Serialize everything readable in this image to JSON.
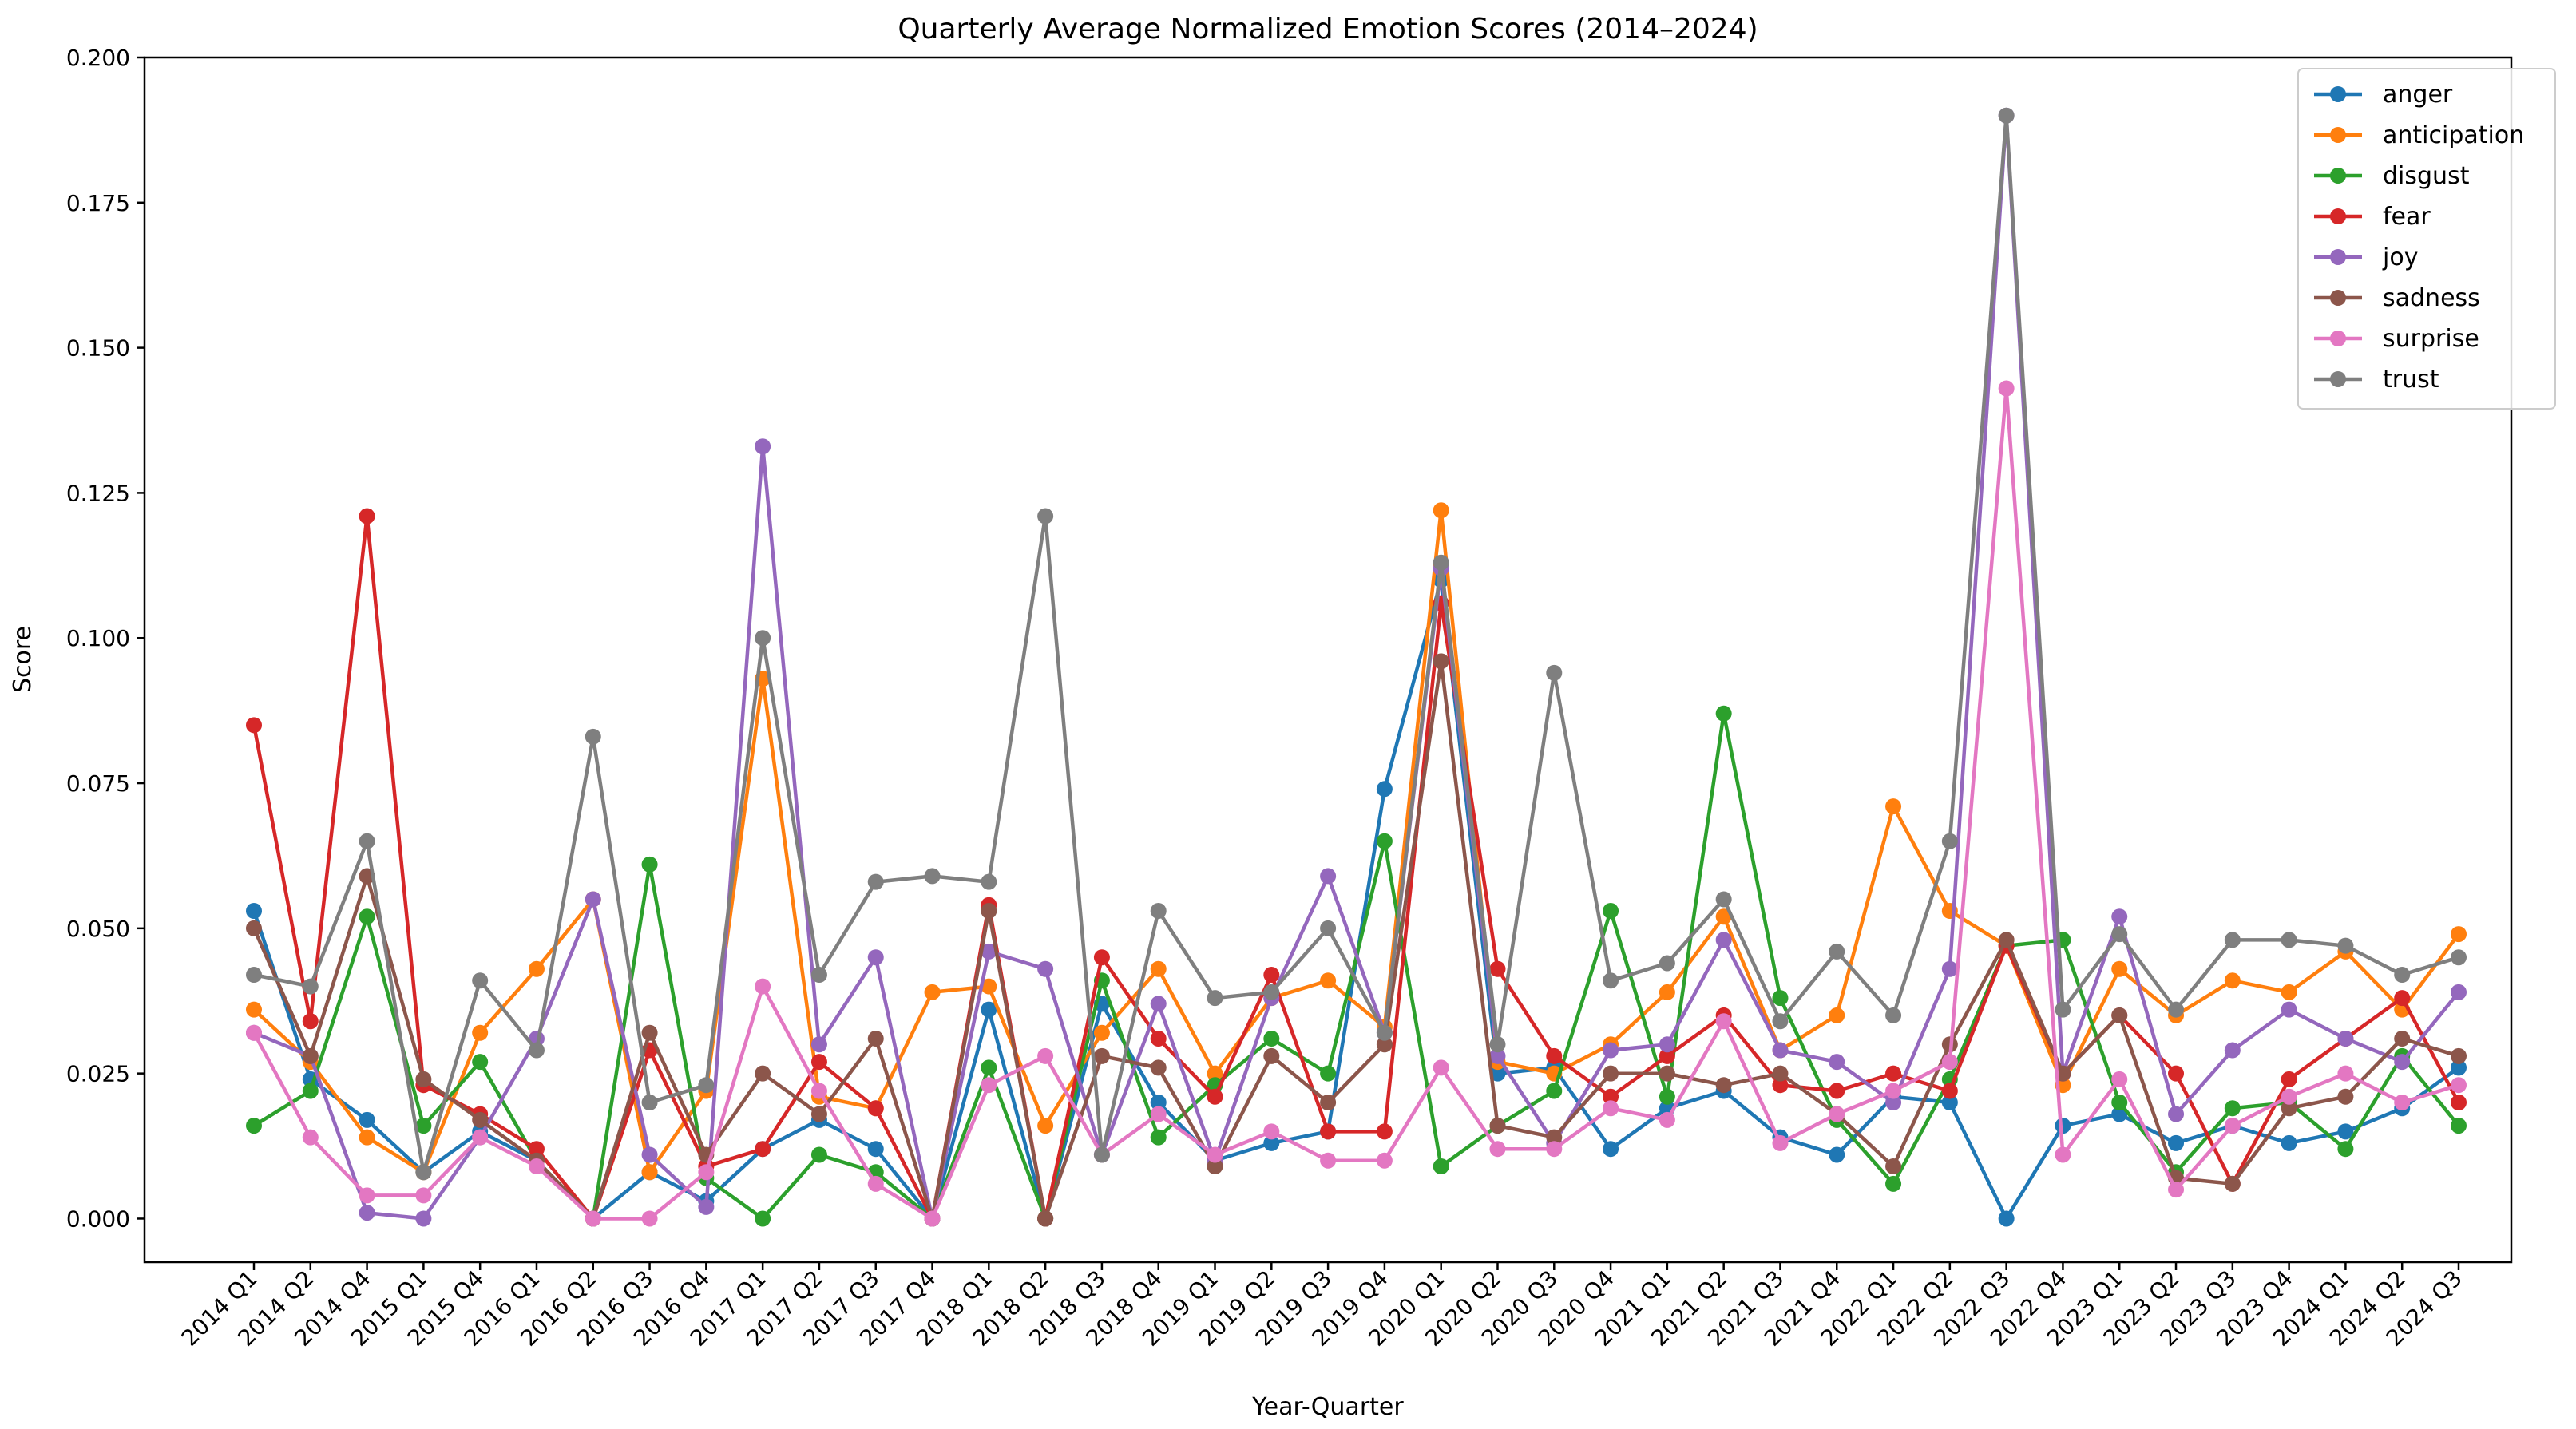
{
  "chart_data": {
    "type": "line",
    "title": "Quarterly Average Normalized Emotion Scores (2014–2024)",
    "xlabel": "Year-Quarter",
    "ylabel": "Score",
    "ylim": [
      -0.0075,
      0.2
    ],
    "yticks": [
      "0.000",
      "0.025",
      "0.050",
      "0.075",
      "0.100",
      "0.125",
      "0.150",
      "0.175",
      "0.200"
    ],
    "legend_position": "top-right",
    "grid": false,
    "categories": [
      "2014 Q1",
      "2014 Q2",
      "2014 Q4",
      "2015 Q1",
      "2015 Q4",
      "2016 Q1",
      "2016 Q2",
      "2016 Q3",
      "2016 Q4",
      "2017 Q1",
      "2017 Q2",
      "2017 Q3",
      "2017 Q4",
      "2018 Q1",
      "2018 Q2",
      "2018 Q3",
      "2018 Q4",
      "2019 Q1",
      "2019 Q2",
      "2019 Q3",
      "2019 Q4",
      "2020 Q1",
      "2020 Q2",
      "2020 Q3",
      "2020 Q4",
      "2021 Q1",
      "2021 Q2",
      "2021 Q3",
      "2021 Q4",
      "2022 Q1",
      "2022 Q2",
      "2022 Q3",
      "2022 Q4",
      "2023 Q1",
      "2023 Q2",
      "2023 Q3",
      "2023 Q4",
      "2024 Q1",
      "2024 Q2",
      "2024 Q3"
    ],
    "series": [
      {
        "name": "anger",
        "color": "#1f77b4",
        "values": [
          0.053,
          0.024,
          0.017,
          0.008,
          0.015,
          0.01,
          0.0,
          0.008,
          0.003,
          0.012,
          0.017,
          0.012,
          0.0,
          0.036,
          0.0,
          0.037,
          0.02,
          0.01,
          0.013,
          0.015,
          0.074,
          0.11,
          0.025,
          0.026,
          0.012,
          0.019,
          0.022,
          0.014,
          0.011,
          0.021,
          0.02,
          0.0,
          0.016,
          0.018,
          0.013,
          0.016,
          0.013,
          0.015,
          0.019,
          0.026
        ]
      },
      {
        "name": "anticipation",
        "color": "#ff7f0e",
        "values": [
          0.036,
          0.027,
          0.014,
          0.008,
          0.032,
          0.043,
          0.055,
          0.008,
          0.022,
          0.093,
          0.021,
          0.019,
          0.039,
          0.04,
          0.016,
          0.032,
          0.043,
          0.025,
          0.038,
          0.041,
          0.033,
          0.122,
          0.027,
          0.025,
          0.03,
          0.039,
          0.052,
          0.029,
          0.035,
          0.071,
          0.053,
          0.047,
          0.023,
          0.043,
          0.035,
          0.041,
          0.039,
          0.046,
          0.036,
          0.049
        ]
      },
      {
        "name": "disgust",
        "color": "#2ca02c",
        "values": [
          0.016,
          0.022,
          0.052,
          0.016,
          0.027,
          0.01,
          0.0,
          0.061,
          0.007,
          0.0,
          0.011,
          0.008,
          0.0,
          0.026,
          0.0,
          0.041,
          0.014,
          0.023,
          0.031,
          0.025,
          0.065,
          0.009,
          0.016,
          0.022,
          0.053,
          0.021,
          0.087,
          0.038,
          0.017,
          0.006,
          0.024,
          0.047,
          0.048,
          0.02,
          0.008,
          0.019,
          0.02,
          0.012,
          0.028,
          0.016
        ]
      },
      {
        "name": "fear",
        "color": "#d62728",
        "values": [
          0.085,
          0.034,
          0.121,
          0.023,
          0.018,
          0.012,
          0.0,
          0.029,
          0.009,
          0.012,
          0.027,
          0.019,
          0.0,
          0.054,
          0.0,
          0.045,
          0.031,
          0.021,
          0.042,
          0.015,
          0.015,
          0.106,
          0.043,
          0.028,
          0.021,
          0.028,
          0.035,
          0.023,
          0.022,
          0.025,
          0.022,
          0.047,
          0.025,
          0.035,
          0.025,
          0.006,
          0.024,
          0.031,
          0.038,
          0.02
        ]
      },
      {
        "name": "joy",
        "color": "#9467bd",
        "values": [
          0.032,
          0.028,
          0.001,
          0.0,
          0.014,
          0.031,
          0.055,
          0.011,
          0.002,
          0.133,
          0.03,
          0.045,
          0.0,
          0.046,
          0.043,
          0.011,
          0.037,
          0.01,
          0.038,
          0.059,
          0.032,
          0.112,
          0.028,
          0.013,
          0.029,
          0.03,
          0.048,
          0.029,
          0.027,
          0.02,
          0.043,
          0.19,
          0.025,
          0.052,
          0.018,
          0.029,
          0.036,
          0.031,
          0.027,
          0.039
        ]
      },
      {
        "name": "sadness",
        "color": "#8c564b",
        "values": [
          0.05,
          0.028,
          0.059,
          0.024,
          0.017,
          0.01,
          0.0,
          0.032,
          0.011,
          0.025,
          0.018,
          0.031,
          0.0,
          0.053,
          0.0,
          0.028,
          0.026,
          0.009,
          0.028,
          0.02,
          0.03,
          0.096,
          0.016,
          0.014,
          0.025,
          0.025,
          0.023,
          0.025,
          0.018,
          0.009,
          0.03,
          0.048,
          0.025,
          0.035,
          0.007,
          0.006,
          0.019,
          0.021,
          0.031,
          0.028
        ]
      },
      {
        "name": "surprise",
        "color": "#e377c2",
        "values": [
          0.032,
          0.014,
          0.004,
          0.004,
          0.014,
          0.009,
          0.0,
          0.0,
          0.008,
          0.04,
          0.022,
          0.006,
          0.0,
          0.023,
          0.028,
          0.011,
          0.018,
          0.011,
          0.015,
          0.01,
          0.01,
          0.026,
          0.012,
          0.012,
          0.019,
          0.017,
          0.034,
          0.013,
          0.018,
          0.022,
          0.027,
          0.143,
          0.011,
          0.024,
          0.005,
          0.016,
          0.021,
          0.025,
          0.02,
          0.023
        ]
      },
      {
        "name": "trust",
        "color": "#7f7f7f",
        "values": [
          0.042,
          0.04,
          0.065,
          0.008,
          0.041,
          0.029,
          0.083,
          0.02,
          0.023,
          0.1,
          0.042,
          0.058,
          0.059,
          0.058,
          0.121,
          0.011,
          0.053,
          0.038,
          0.039,
          0.05,
          0.032,
          0.113,
          0.03,
          0.094,
          0.041,
          0.044,
          0.055,
          0.034,
          0.046,
          0.035,
          0.065,
          0.19,
          0.036,
          0.049,
          0.036,
          0.048,
          0.048,
          0.047,
          0.042,
          0.045
        ]
      }
    ]
  }
}
